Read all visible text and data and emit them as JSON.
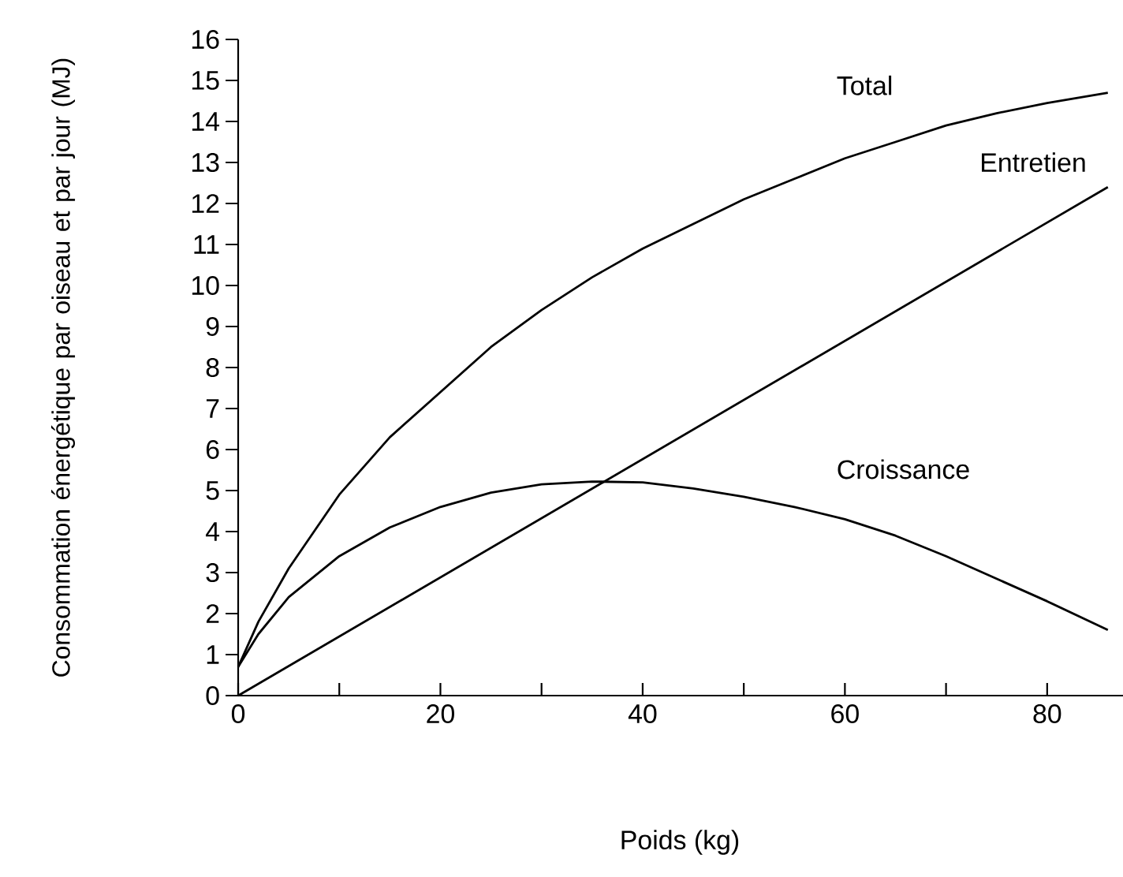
{
  "chart_data": {
    "type": "line",
    "xlabel": "Poids (kg)",
    "ylabel": "Consommation énergétique par oiseau et par jour (MJ)",
    "xlim": [
      0,
      87.5
    ],
    "ylim": [
      0,
      16
    ],
    "xticks": [
      0,
      {
        "value": 10,
        "label": null
      },
      20,
      {
        "value": 30,
        "label": null
      },
      40,
      {
        "value": 50,
        "label": null
      },
      60,
      {
        "value": 70,
        "label": null
      },
      80
    ],
    "yticks": [
      0,
      1,
      2,
      3,
      4,
      5,
      6,
      7,
      8,
      9,
      10,
      11,
      12,
      13,
      14,
      15,
      16
    ],
    "grid": false,
    "legend": false,
    "marker": "none",
    "line_style": "solid",
    "series": [
      {
        "name": "Total",
        "color": "#000000",
        "x": [
          0,
          2,
          5,
          10,
          15,
          20,
          25,
          30,
          35,
          40,
          45,
          50,
          55,
          60,
          65,
          70,
          75,
          80,
          86
        ],
        "values": [
          0.7,
          1.8,
          3.1,
          4.9,
          6.3,
          7.4,
          8.5,
          9.4,
          10.2,
          10.9,
          11.5,
          12.1,
          12.6,
          13.1,
          13.5,
          13.9,
          14.2,
          14.45,
          14.7
        ]
      },
      {
        "name": "Entretien",
        "color": "#000000",
        "x": [
          0,
          86
        ],
        "values": [
          0,
          12.4
        ]
      },
      {
        "name": "Croissance",
        "color": "#000000",
        "x": [
          0,
          2,
          5,
          10,
          15,
          20,
          25,
          30,
          35,
          40,
          45,
          50,
          55,
          60,
          65,
          70,
          75,
          80,
          86
        ],
        "values": [
          0.7,
          1.5,
          2.4,
          3.4,
          4.1,
          4.6,
          4.95,
          5.15,
          5.22,
          5.2,
          5.05,
          4.85,
          4.6,
          4.3,
          3.9,
          3.4,
          2.85,
          2.3,
          1.6
        ]
      }
    ]
  }
}
